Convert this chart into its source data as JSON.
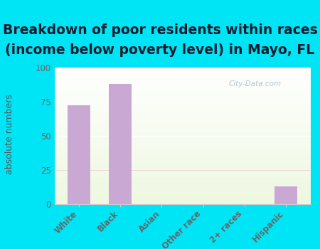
{
  "title_line1": "Breakdown of poor residents within races",
  "title_line2": "(income below poverty level) in Mayo, FL",
  "categories": [
    "White",
    "Black",
    "Asian",
    "Other race",
    "2+ races",
    "Hispanic"
  ],
  "values": [
    72,
    88,
    0,
    0,
    0,
    13
  ],
  "bar_color": "#c9a8d4",
  "ylabel": "absolute numbers",
  "ylim": [
    0,
    100
  ],
  "yticks": [
    0,
    25,
    50,
    75,
    100
  ],
  "bg_outer": "#00e5f5",
  "bg_plot_top": "#e8f5e0",
  "bg_plot_bottom": "#f8fff4",
  "title_fontsize": 13.5,
  "axis_label_fontsize": 9,
  "tick_fontsize": 8.5,
  "watermark": "City-Data.com",
  "title_color": "#1a1a2e",
  "tick_color": "#666666",
  "ylabel_color": "#555555",
  "grid_color": "#e0e8d8",
  "spine_color": "#cccccc"
}
